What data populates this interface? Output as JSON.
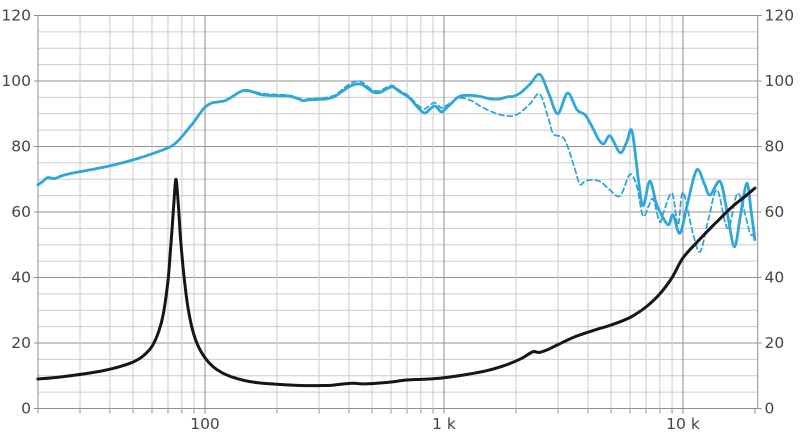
{
  "chart": {
    "colors": {
      "background": "#ffffff",
      "response_blue": "#2FA7D8",
      "impedance_black": "#161616",
      "grid_minor": "#cccccc",
      "grid_major": "#8f8f8f",
      "axis_border": "#8f8f8f",
      "tick_label": "#454545"
    }
  },
  "chart_data": {
    "type": "line",
    "title": "",
    "xlabel": "",
    "ylabel": "",
    "legend": "none",
    "grid": "on",
    "x_axis": {
      "scale": "log",
      "min_hz": 20,
      "max_hz": 20000,
      "tick_labels": [
        {
          "value": 100,
          "label": "100"
        },
        {
          "value": 1000,
          "label": "1 k"
        },
        {
          "value": 10000,
          "label": "10 k"
        }
      ]
    },
    "y_axis_left": {
      "min": 0,
      "max": 120,
      "major_step": 20,
      "minor_step": 5,
      "tick_labels": [
        "0",
        "20",
        "40",
        "60",
        "80",
        "100",
        "120"
      ]
    },
    "y_axis_right": {
      "min": 0,
      "max": 120,
      "major_step": 20,
      "minor_step": 5,
      "tick_labels": [
        "0",
        "20",
        "40",
        "60",
        "80",
        "100",
        "120"
      ]
    },
    "series": [
      {
        "name": "spl-off-axis",
        "style": "dashed",
        "color": "#2FA7D8",
        "points": [
          [
            150,
            97.3
          ],
          [
            170,
            96.3
          ],
          [
            185,
            96.0
          ],
          [
            205,
            95.8
          ],
          [
            225,
            95.6
          ],
          [
            245,
            94.9
          ],
          [
            257,
            94.3
          ],
          [
            275,
            94.6
          ],
          [
            300,
            94.7
          ],
          [
            325,
            95.0
          ],
          [
            350,
            95.7
          ],
          [
            378,
            97.6
          ],
          [
            410,
            99.4
          ],
          [
            445,
            99.9
          ],
          [
            470,
            98.8
          ],
          [
            505,
            97.2
          ],
          [
            540,
            97.0
          ],
          [
            575,
            98.1
          ],
          [
            610,
            98.6
          ],
          [
            650,
            97.2
          ],
          [
            715,
            95.3
          ],
          [
            780,
            92.5
          ],
          [
            830,
            91.5
          ],
          [
            880,
            92.8
          ],
          [
            915,
            93.4
          ],
          [
            950,
            92.4
          ],
          [
            980,
            91.8
          ],
          [
            1050,
            93.0
          ],
          [
            1160,
            94.8
          ],
          [
            1300,
            94.0
          ],
          [
            1410,
            92.4
          ],
          [
            1550,
            90.9
          ],
          [
            1700,
            89.8
          ],
          [
            1850,
            89.3
          ],
          [
            1950,
            89.4
          ],
          [
            2100,
            90.5
          ],
          [
            2300,
            93.2
          ],
          [
            2520,
            95.9
          ],
          [
            2750,
            88.0
          ],
          [
            2870,
            83.8
          ],
          [
            3190,
            82.2
          ],
          [
            3500,
            74.0
          ],
          [
            3700,
            68.5
          ],
          [
            3900,
            69.5
          ],
          [
            4200,
            69.8
          ],
          [
            4530,
            69.2
          ],
          [
            4900,
            67.0
          ],
          [
            5450,
            64.9
          ],
          [
            6000,
            71.5
          ],
          [
            6430,
            67.4
          ],
          [
            6800,
            58.8
          ],
          [
            7200,
            62.0
          ],
          [
            7500,
            63.9
          ],
          [
            7990,
            57.0
          ],
          [
            8300,
            60.0
          ],
          [
            9000,
            65.7
          ],
          [
            9530,
            56.0
          ],
          [
            10000,
            66.0
          ],
          [
            11000,
            53.5
          ],
          [
            11800,
            47.9
          ],
          [
            12800,
            58.0
          ],
          [
            13900,
            66.7
          ],
          [
            15400,
            55.0
          ],
          [
            17000,
            65.7
          ],
          [
            19100,
            53.5
          ],
          [
            20000,
            54.5
          ]
        ]
      },
      {
        "name": "spl-on-axis",
        "style": "solid",
        "color": "#2FA7D8",
        "points": [
          [
            20,
            68.3
          ],
          [
            21,
            69.4
          ],
          [
            22,
            70.5
          ],
          [
            23.5,
            70.2
          ],
          [
            25,
            71.0
          ],
          [
            28,
            71.9
          ],
          [
            31.5,
            72.6
          ],
          [
            35.5,
            73.3
          ],
          [
            40,
            74.1
          ],
          [
            45,
            75.0
          ],
          [
            50,
            75.9
          ],
          [
            56,
            77.0
          ],
          [
            63,
            78.3
          ],
          [
            71,
            79.8
          ],
          [
            75,
            80.9
          ],
          [
            80,
            83.0
          ],
          [
            85,
            85.3
          ],
          [
            90,
            87.6
          ],
          [
            95,
            90.0
          ],
          [
            100,
            92.0
          ],
          [
            106,
            93.2
          ],
          [
            113,
            93.6
          ],
          [
            120,
            93.9
          ],
          [
            128,
            94.9
          ],
          [
            137,
            96.3
          ],
          [
            145,
            97.1
          ],
          [
            155,
            96.9
          ],
          [
            170,
            95.9
          ],
          [
            185,
            95.6
          ],
          [
            205,
            95.5
          ],
          [
            225,
            95.4
          ],
          [
            245,
            94.6
          ],
          [
            257,
            94.0
          ],
          [
            275,
            94.3
          ],
          [
            300,
            94.4
          ],
          [
            325,
            94.6
          ],
          [
            350,
            95.3
          ],
          [
            378,
            97.0
          ],
          [
            410,
            98.6
          ],
          [
            445,
            99.1
          ],
          [
            470,
            98.2
          ],
          [
            505,
            96.6
          ],
          [
            540,
            96.5
          ],
          [
            575,
            97.6
          ],
          [
            610,
            98.2
          ],
          [
            650,
            96.8
          ],
          [
            715,
            94.9
          ],
          [
            780,
            91.8
          ],
          [
            830,
            90.2
          ],
          [
            880,
            91.6
          ],
          [
            915,
            92.4
          ],
          [
            950,
            91.3
          ],
          [
            980,
            90.6
          ],
          [
            1050,
            92.5
          ],
          [
            1160,
            95.3
          ],
          [
            1300,
            95.6
          ],
          [
            1410,
            95.3
          ],
          [
            1550,
            94.6
          ],
          [
            1700,
            94.5
          ],
          [
            1850,
            95.2
          ],
          [
            1950,
            95.3
          ],
          [
            2100,
            96.5
          ],
          [
            2300,
            99.2
          ],
          [
            2520,
            102.0
          ],
          [
            2750,
            96.0
          ],
          [
            2990,
            90.0
          ],
          [
            3290,
            96.3
          ],
          [
            3600,
            91.2
          ],
          [
            3900,
            89.6
          ],
          [
            4200,
            85.5
          ],
          [
            4430,
            82.2
          ],
          [
            4660,
            80.8
          ],
          [
            4960,
            83.2
          ],
          [
            5450,
            78.1
          ],
          [
            5800,
            81.2
          ],
          [
            6120,
            84.7
          ],
          [
            6500,
            70.0
          ],
          [
            6800,
            61.9
          ],
          [
            7260,
            69.4
          ],
          [
            7700,
            63.0
          ],
          [
            7990,
            60.2
          ],
          [
            8670,
            56.1
          ],
          [
            9080,
            59.1
          ],
          [
            9710,
            53.5
          ],
          [
            10400,
            62.0
          ],
          [
            11400,
            72.8
          ],
          [
            12300,
            68.5
          ],
          [
            12970,
            65.2
          ],
          [
            14300,
            69.3
          ],
          [
            15300,
            60.0
          ],
          [
            16400,
            49.4
          ],
          [
            17400,
            59.0
          ],
          [
            18500,
            68.8
          ],
          [
            19300,
            60.0
          ],
          [
            20000,
            51.5
          ]
        ]
      },
      {
        "name": "impedance",
        "style": "solid",
        "color": "#161616",
        "points": [
          [
            20,
            9.0
          ],
          [
            24,
            9.5
          ],
          [
            28,
            10.1
          ],
          [
            32,
            10.7
          ],
          [
            36,
            11.3
          ],
          [
            40,
            12.0
          ],
          [
            45,
            13.0
          ],
          [
            50,
            14.2
          ],
          [
            55,
            16.0
          ],
          [
            60,
            19.0
          ],
          [
            64,
            23.5
          ],
          [
            67,
            29.0
          ],
          [
            70,
            39.0
          ],
          [
            72,
            50.0
          ],
          [
            74,
            62.0
          ],
          [
            75.5,
            70.0
          ],
          [
            77,
            64.0
          ],
          [
            79,
            52.0
          ],
          [
            81,
            43.0
          ],
          [
            84,
            33.0
          ],
          [
            88,
            25.0
          ],
          [
            93,
            19.5
          ],
          [
            100,
            15.5
          ],
          [
            108,
            12.8
          ],
          [
            118,
            10.9
          ],
          [
            130,
            9.6
          ],
          [
            145,
            8.6
          ],
          [
            165,
            7.9
          ],
          [
            190,
            7.5
          ],
          [
            220,
            7.2
          ],
          [
            260,
            7.0
          ],
          [
            300,
            7.0
          ],
          [
            340,
            7.1
          ],
          [
            380,
            7.5
          ],
          [
            420,
            7.7
          ],
          [
            460,
            7.5
          ],
          [
            520,
            7.7
          ],
          [
            600,
            8.1
          ],
          [
            700,
            8.7
          ],
          [
            800,
            8.9
          ],
          [
            900,
            9.1
          ],
          [
            1000,
            9.4
          ],
          [
            1200,
            10.2
          ],
          [
            1500,
            11.5
          ],
          [
            1800,
            13.2
          ],
          [
            2100,
            15.2
          ],
          [
            2350,
            17.3
          ],
          [
            2500,
            17.1
          ],
          [
            2700,
            17.9
          ],
          [
            3000,
            19.5
          ],
          [
            3500,
            21.8
          ],
          [
            4200,
            23.8
          ],
          [
            5000,
            25.5
          ],
          [
            6000,
            27.8
          ],
          [
            7000,
            31.0
          ],
          [
            8000,
            35.0
          ],
          [
            9000,
            40.0
          ],
          [
            10000,
            46.0
          ],
          [
            11700,
            51.5
          ],
          [
            13000,
            55.0
          ],
          [
            14300,
            58.0
          ],
          [
            16000,
            61.5
          ],
          [
            18000,
            64.5
          ],
          [
            20000,
            67.3
          ]
        ]
      }
    ]
  }
}
